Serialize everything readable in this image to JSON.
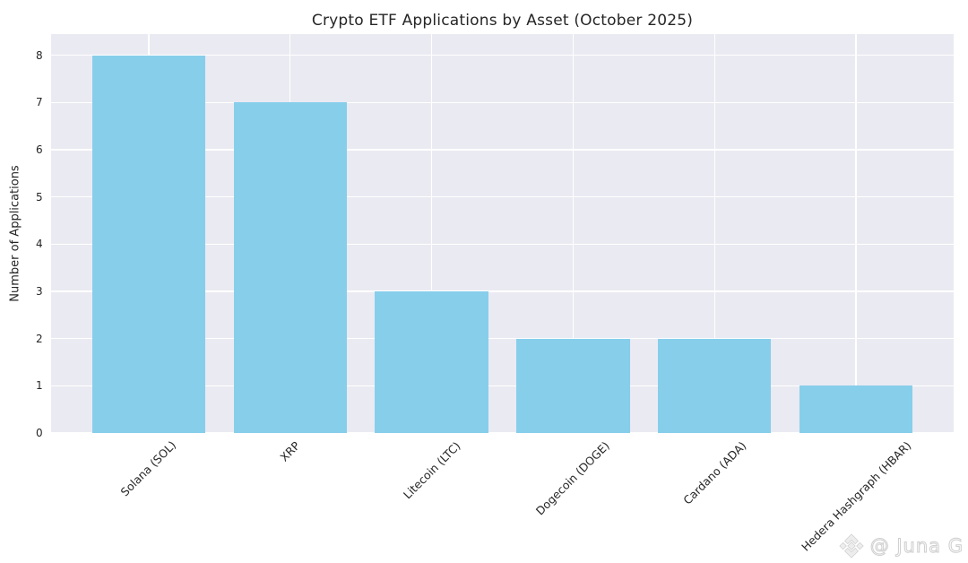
{
  "title": "Crypto ETF Applications by Asset (October 2025)",
  "watermark": {
    "icon": "binance-diamond-icon",
    "text": "@ Juna G"
  },
  "chart_data": {
    "type": "bar",
    "title": "Crypto ETF Applications by Asset (October 2025)",
    "xlabel": "",
    "ylabel": "Number of Applications",
    "categories": [
      "Solana (SOL)",
      "XRP",
      "Litecoin (LTC)",
      "Dogecoin (DOGE)",
      "Cardano (ADA)",
      "Hedera Hashgraph (HBAR)"
    ],
    "values": [
      8,
      7,
      3,
      2,
      2,
      1
    ],
    "yticks": [
      0,
      1,
      2,
      3,
      4,
      5,
      6,
      7,
      8
    ],
    "ylim": [
      0,
      8.45
    ],
    "grid": true,
    "legend": "none",
    "x_tick_rotation_deg": 45,
    "bar_color": "#87CEEB",
    "plot_background_color": "#EAEAF2",
    "grid_color": "#FFFFFF",
    "text_color": "#262626"
  }
}
